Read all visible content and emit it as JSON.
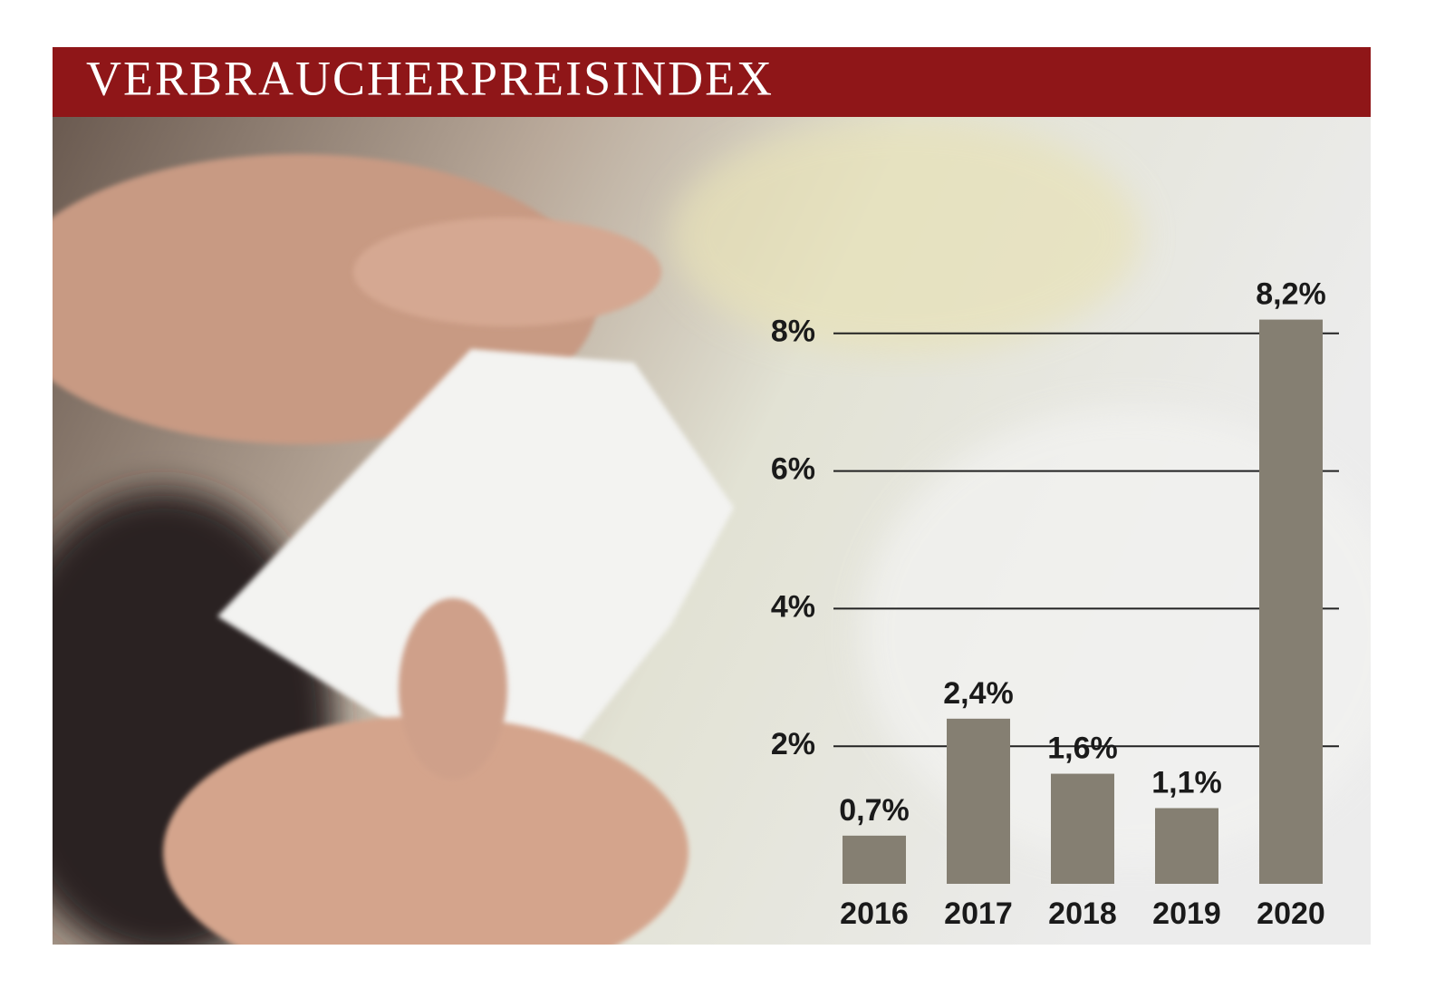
{
  "chart_data": {
    "type": "bar",
    "title": "VERBRAUCHERPREISINDEX",
    "categories": [
      "2016",
      "2017",
      "2018",
      "2019",
      "2020"
    ],
    "values": [
      0.7,
      2.4,
      1.6,
      1.1,
      8.2
    ],
    "value_labels": [
      "0,7%",
      "2,4%",
      "1,6%",
      "1,1%",
      "8,2%"
    ],
    "color": "#857f72",
    "ylim": [
      0,
      8.4
    ],
    "yticks": [
      {
        "value": 2,
        "label": "2%"
      },
      {
        "value": 4,
        "label": "4%"
      },
      {
        "value": 6,
        "label": "6%"
      },
      {
        "value": 8,
        "label": "8%"
      }
    ],
    "grid": true
  }
}
